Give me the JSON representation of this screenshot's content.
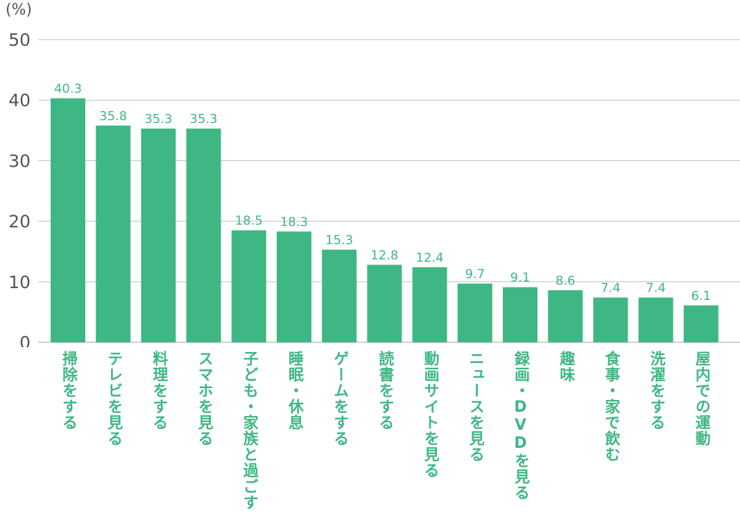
{
  "colors": {
    "bar": "#3fb784",
    "label": "#3fb784",
    "grid": "#bfbfbf",
    "axis_text": "#555555"
  },
  "chart_data": {
    "type": "bar",
    "unit_label": "(%)",
    "categories": [
      "掃除をする",
      "テレビを見る",
      "料理をする",
      "スマホを見る",
      "子ども・家族と過ごす",
      "睡眠・休息",
      "ゲームをする",
      "読書をする",
      "動画サイトを見る",
      "ニュースを見る",
      "録画・DVDを見る",
      "趣味",
      "食事・家で飲む",
      "洗濯をする",
      "屋内での運動"
    ],
    "values": [
      40.3,
      35.8,
      35.3,
      35.3,
      18.5,
      18.3,
      15.3,
      12.8,
      12.4,
      9.7,
      9.1,
      8.6,
      7.4,
      7.4,
      6.1
    ],
    "value_labels": [
      "40.3",
      "35.8",
      "35.3",
      "35.3",
      "18.5",
      "18.3",
      "15.3",
      "12.8",
      "12.4",
      "9.7",
      "9.1",
      "8.6",
      "7.4",
      "7.4",
      "6.1"
    ],
    "y_ticks": [
      "0",
      "10",
      "20",
      "30",
      "40",
      "50"
    ],
    "ylim": [
      0,
      50
    ],
    "grid": true,
    "legend": "none"
  }
}
